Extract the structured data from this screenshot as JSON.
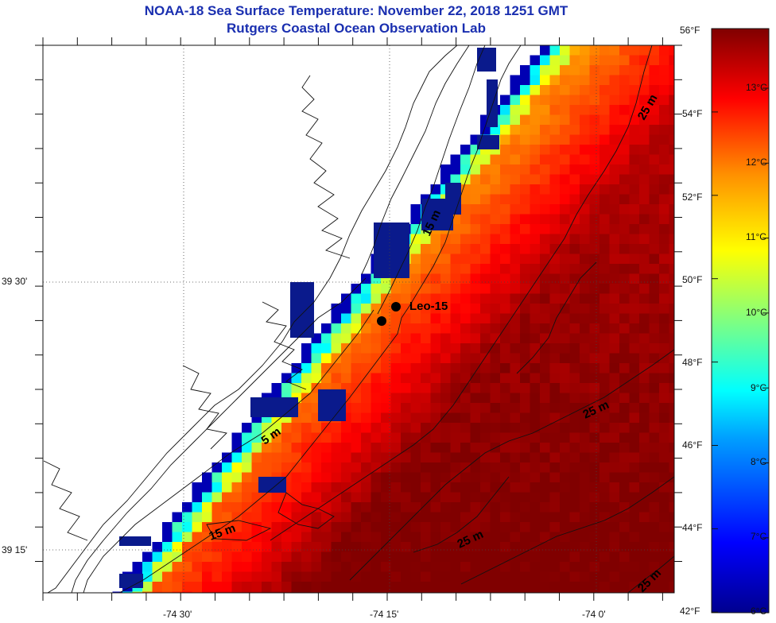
{
  "title": {
    "line1": "NOAA-18 Sea Surface Temperature:  November 22, 2018 1251 GMT",
    "line2": "Rutgers Coastal Ocean Observation Lab"
  },
  "map": {
    "lat_labels": [
      "39 30'",
      "39 15'"
    ],
    "lon_labels": [
      "-74 30'",
      "-74 15'",
      "-74 0'"
    ],
    "station": {
      "name": "Leo-15"
    },
    "contour_labels": [
      "5 m",
      "15 m",
      "15 m",
      "25 m",
      "25 m",
      "25 m",
      "25 m"
    ],
    "colors": {
      "land": "#ffffff",
      "cloud": "#0a1a8c",
      "grid": "#444444"
    }
  },
  "colorbar": {
    "fahrenheit_labels": [
      "56°F",
      "54°F",
      "52°F",
      "50°F",
      "48°F",
      "46°F",
      "44°F",
      "42°F"
    ],
    "celsius_labels": [
      "13°C",
      "12°C",
      "11°C",
      "10°C",
      "9°C",
      "8°C",
      "7°C",
      "6°C"
    ],
    "colormap": "jet",
    "range_f": [
      42,
      56
    ],
    "range_c": [
      6,
      13.5
    ]
  }
}
